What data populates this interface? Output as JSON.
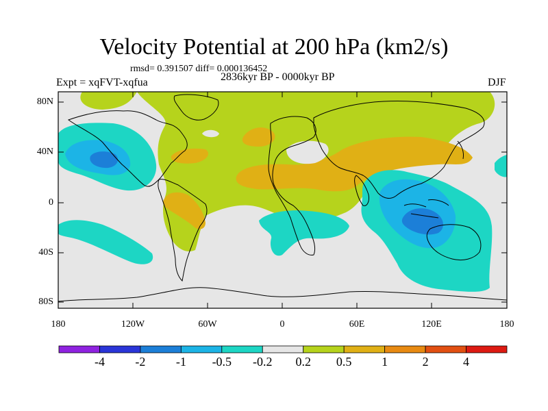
{
  "header": {
    "title": "Velocity Potential at 200 hPa (km2/s)",
    "stats": "rmsd= 0.391507 diff= 0.000136452",
    "period": "2836kyr BP - 0000kyr BP",
    "experiment": "Expt = xqFVT-xqfua",
    "season": "DJF"
  },
  "axes": {
    "lat_labels": [
      "80N",
      "40N",
      "0",
      "40S",
      "80S"
    ],
    "lon_labels": [
      "180",
      "120W",
      "60W",
      "0",
      "60E",
      "120E",
      "180"
    ]
  },
  "colorbar": {
    "labels": [
      "-4",
      "-2",
      "-1",
      "-0.5",
      "-0.2",
      "0.2",
      "0.5",
      "1",
      "2",
      "4"
    ],
    "colors": [
      "#8f22e0",
      "#2a35d8",
      "#1c7fd8",
      "#1cb4e6",
      "#1dd6c4",
      "#e6e6e6",
      "#b6d31c",
      "#e0b015",
      "#e88a12",
      "#e25012",
      "#dd1a12"
    ]
  },
  "regions": [
    {
      "name": "north-pacific-minimum",
      "level": "-1"
    },
    {
      "name": "maritime-continent-minimum",
      "level": "-1"
    },
    {
      "name": "eurasia-maximum",
      "level": "0.5"
    },
    {
      "name": "south-america-maximum",
      "level": "0.5"
    }
  ]
}
